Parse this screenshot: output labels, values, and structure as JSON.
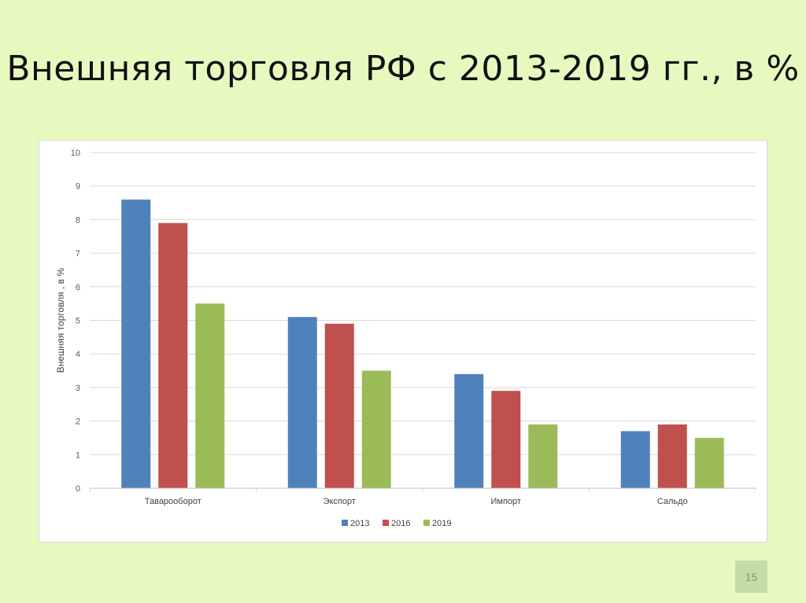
{
  "slide": {
    "title": "Внешняя торговля РФ с 2013-2019 гг., в %",
    "page_number": "15"
  },
  "colors": {
    "background": "#e6f9bf",
    "series": [
      "#4f81bd",
      "#c0504d",
      "#9bbb59"
    ]
  },
  "chart_data": {
    "type": "bar",
    "title": "",
    "xlabel": "",
    "ylabel": "Внешняя торговля , в %",
    "ylim": [
      0,
      10
    ],
    "yticks": [
      "0",
      "1",
      "2",
      "3",
      "4",
      "5",
      "6",
      "7",
      "8",
      "9",
      "10"
    ],
    "categories": [
      "Таварооборот",
      "Экспорт",
      "Импорт",
      "Сальдо"
    ],
    "series": [
      {
        "name": "2013",
        "values": [
          8.6,
          5.1,
          3.4,
          1.7
        ]
      },
      {
        "name": "2016",
        "values": [
          7.9,
          4.9,
          2.9,
          1.9
        ]
      },
      {
        "name": "2019",
        "values": [
          5.5,
          3.5,
          1.9,
          1.5
        ]
      }
    ],
    "grid": true,
    "legend": "bottom"
  }
}
